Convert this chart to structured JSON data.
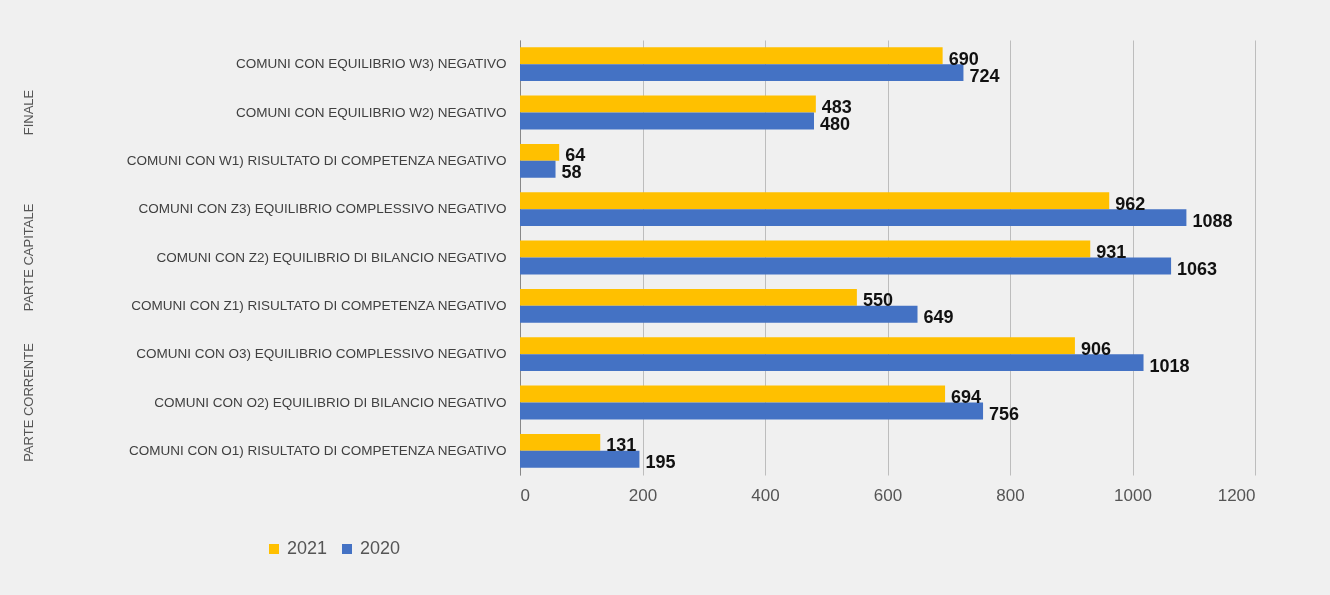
{
  "chart_data": {
    "type": "bar",
    "orientation": "horizontal",
    "categories": [
      "COMUNI CON EQUILIBRIO W3) NEGATIVO",
      "COMUNI CON EQUILIBRIO W2) NEGATIVO",
      "COMUNI CON W1) RISULTATO DI COMPETENZA NEGATIVO",
      "COMUNI CON Z3) EQUILIBRIO COMPLESSIVO NEGATIVO",
      "COMUNI CON Z2) EQUILIBRIO DI BILANCIO NEGATIVO",
      "COMUNI CON Z1) RISULTATO DI COMPETENZA NEGATIVO",
      "COMUNI CON O3) EQUILIBRIO COMPLESSIVO NEGATIVO",
      "COMUNI CON O2) EQUILIBRIO DI BILANCIO NEGATIVO",
      "COMUNI CON O1) RISULTATO DI COMPETENZA NEGATIVO"
    ],
    "series": [
      {
        "name": "2021",
        "color": "#ffc000",
        "values": [
          690,
          483,
          64,
          962,
          931,
          550,
          906,
          694,
          131
        ]
      },
      {
        "name": "2020",
        "color": "#4472c4",
        "values": [
          724,
          480,
          58,
          1088,
          1063,
          649,
          1018,
          756,
          195
        ]
      }
    ],
    "xlim": [
      0,
      1200
    ],
    "xticks": [
      0,
      200,
      400,
      600,
      800,
      1000,
      1200
    ],
    "grid": "x",
    "legend": "bottom",
    "data_labels": true,
    "annotations": [
      "FINALE",
      "PARTE CAPITALE",
      "PARTE CORRENTE"
    ]
  }
}
